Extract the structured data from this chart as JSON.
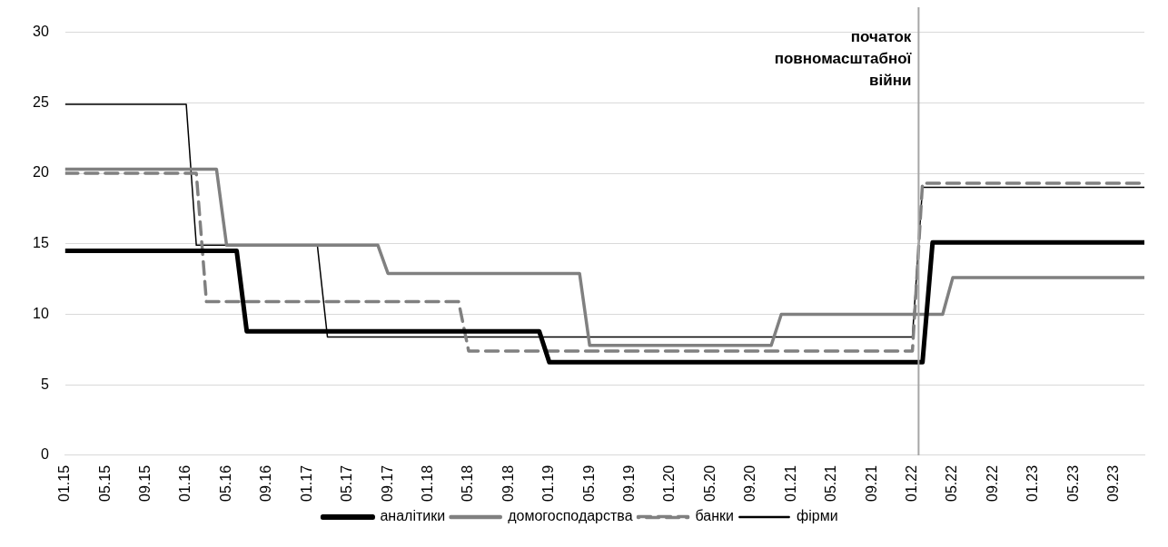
{
  "chart_data": {
    "type": "line",
    "xlim": [
      "2015-01",
      "2023-12"
    ],
    "xticks": [
      {
        "value": "2015-01",
        "label": "01.15"
      },
      {
        "value": "2015-05",
        "label": "05.15"
      },
      {
        "value": "2015-09",
        "label": "09.15"
      },
      {
        "value": "2016-01",
        "label": "01.16"
      },
      {
        "value": "2016-05",
        "label": "05.16"
      },
      {
        "value": "2016-09",
        "label": "09.16"
      },
      {
        "value": "2017-01",
        "label": "01.17"
      },
      {
        "value": "2017-05",
        "label": "05.17"
      },
      {
        "value": "2017-09",
        "label": "09.17"
      },
      {
        "value": "2018-01",
        "label": "01.18"
      },
      {
        "value": "2018-05",
        "label": "05.18"
      },
      {
        "value": "2018-09",
        "label": "09.18"
      },
      {
        "value": "2019-01",
        "label": "01.19"
      },
      {
        "value": "2019-05",
        "label": "05.19"
      },
      {
        "value": "2019-09",
        "label": "09.19"
      },
      {
        "value": "2020-01",
        "label": "01.20"
      },
      {
        "value": "2020-05",
        "label": "05.20"
      },
      {
        "value": "2020-09",
        "label": "09.20"
      },
      {
        "value": "2021-01",
        "label": "01.21"
      },
      {
        "value": "2021-05",
        "label": "05.21"
      },
      {
        "value": "2021-09",
        "label": "09.21"
      },
      {
        "value": "2022-01",
        "label": "01.22"
      },
      {
        "value": "2022-05",
        "label": "05.22"
      },
      {
        "value": "2022-09",
        "label": "09.22"
      },
      {
        "value": "2023-01",
        "label": "01.23"
      },
      {
        "value": "2023-05",
        "label": "05.23"
      },
      {
        "value": "2023-09",
        "label": "09.23"
      }
    ],
    "ylim": [
      0,
      30
    ],
    "yticks": [
      0,
      5,
      10,
      15,
      20,
      25,
      30
    ],
    "grid": "y",
    "legend": "bottom",
    "marker": "none",
    "series": [
      {
        "name": "аналітики",
        "color": "#000000",
        "line_style": "solid",
        "x": [
          "2015-01",
          "2016-06",
          "2016-07",
          "2018-12",
          "2019-01",
          "2022-02",
          "2022-03",
          "2023-12"
        ],
        "values": [
          14.5,
          14.5,
          8.8,
          8.8,
          6.6,
          6.6,
          15.1,
          15.1
        ]
      },
      {
        "name": "домогосподарства",
        "color": "#808080",
        "line_style": "solid",
        "x": [
          "2015-01",
          "2016-04",
          "2016-05",
          "2017-08",
          "2017-09",
          "2019-04",
          "2019-05",
          "2020-11",
          "2020-12",
          "2022-04",
          "2022-05",
          "2023-12"
        ],
        "values": [
          20.3,
          20.3,
          14.9,
          14.9,
          12.9,
          12.9,
          7.8,
          7.8,
          10,
          10,
          12.6,
          12.6
        ]
      },
      {
        "name": "банки",
        "color": "#808080",
        "line_style": "dashed",
        "x": [
          "2015-01",
          "2016-02",
          "2016-03",
          "2018-04",
          "2018-05",
          "2022-01",
          "2022-02",
          "2023-12"
        ],
        "values": [
          20,
          20,
          10.9,
          10.9,
          7.4,
          7.4,
          19.3,
          19.3
        ]
      },
      {
        "name": "фірми",
        "color": "#000000",
        "line_style": "solid",
        "x": [
          "2015-01",
          "2016-01",
          "2016-02",
          "2017-02",
          "2017-03",
          "2022-01",
          "2022-02",
          "2023-12"
        ],
        "values": [
          24.9,
          24.9,
          14.9,
          14.9,
          8.4,
          8.4,
          19,
          19
        ]
      }
    ],
    "ref_lines": [
      {
        "axis": "x",
        "value": "2022-01-20",
        "label": "початок повномасштабної війни",
        "color": "#a6a6a6"
      }
    ]
  }
}
